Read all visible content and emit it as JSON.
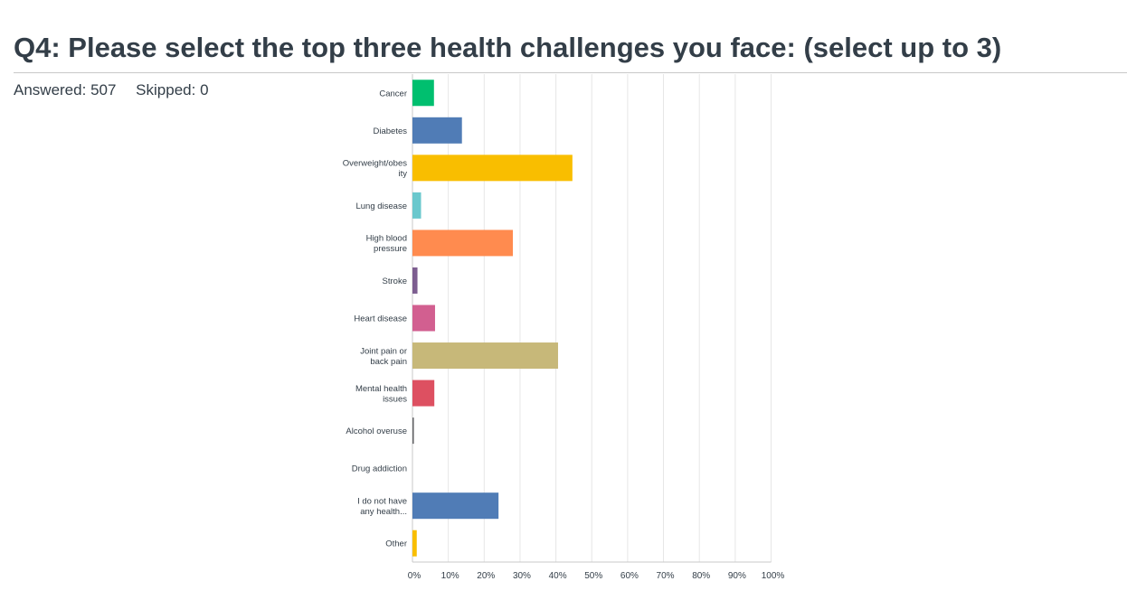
{
  "question": {
    "title": "Q4: Please select the top three health challenges you face: (select up to 3)"
  },
  "stats": {
    "answered_label": "Answered:",
    "answered_count": "507",
    "skipped_label": "Skipped:",
    "skipped_count": "0"
  },
  "chart_data": {
    "type": "bar",
    "orientation": "horizontal",
    "categories": [
      [
        "Cancer"
      ],
      [
        "Diabetes"
      ],
      [
        "Overweight/obes",
        "ity"
      ],
      [
        "Lung disease"
      ],
      [
        "High blood",
        "pressure"
      ],
      [
        "Stroke"
      ],
      [
        "Heart disease"
      ],
      [
        "Joint pain or",
        "back pain"
      ],
      [
        "Mental health",
        "issues"
      ],
      [
        "Alcohol overuse"
      ],
      [
        "Drug addiction"
      ],
      [
        "I do not have",
        "any health..."
      ],
      [
        "Other"
      ]
    ],
    "values": [
      6,
      13.8,
      44.6,
      2.4,
      28,
      1.4,
      6.3,
      40.6,
      6.1,
      0.4,
      0,
      24,
      1.2
    ],
    "colors": [
      "#00bf6f",
      "#507cb6",
      "#f9be00",
      "#6bc8cd",
      "#ff8b4f",
      "#7d5e90",
      "#d25f90",
      "#c7b879",
      "#dd5061",
      "#67686b",
      "#999999",
      "#507cb6",
      "#f9be00"
    ],
    "xlim": [
      0,
      100
    ],
    "x_ticks": [
      "0%",
      "10%",
      "20%",
      "30%",
      "40%",
      "50%",
      "60%",
      "70%",
      "80%",
      "90%",
      "100%"
    ],
    "grid": true,
    "legend": "none",
    "xlabel": "",
    "ylabel": ""
  }
}
